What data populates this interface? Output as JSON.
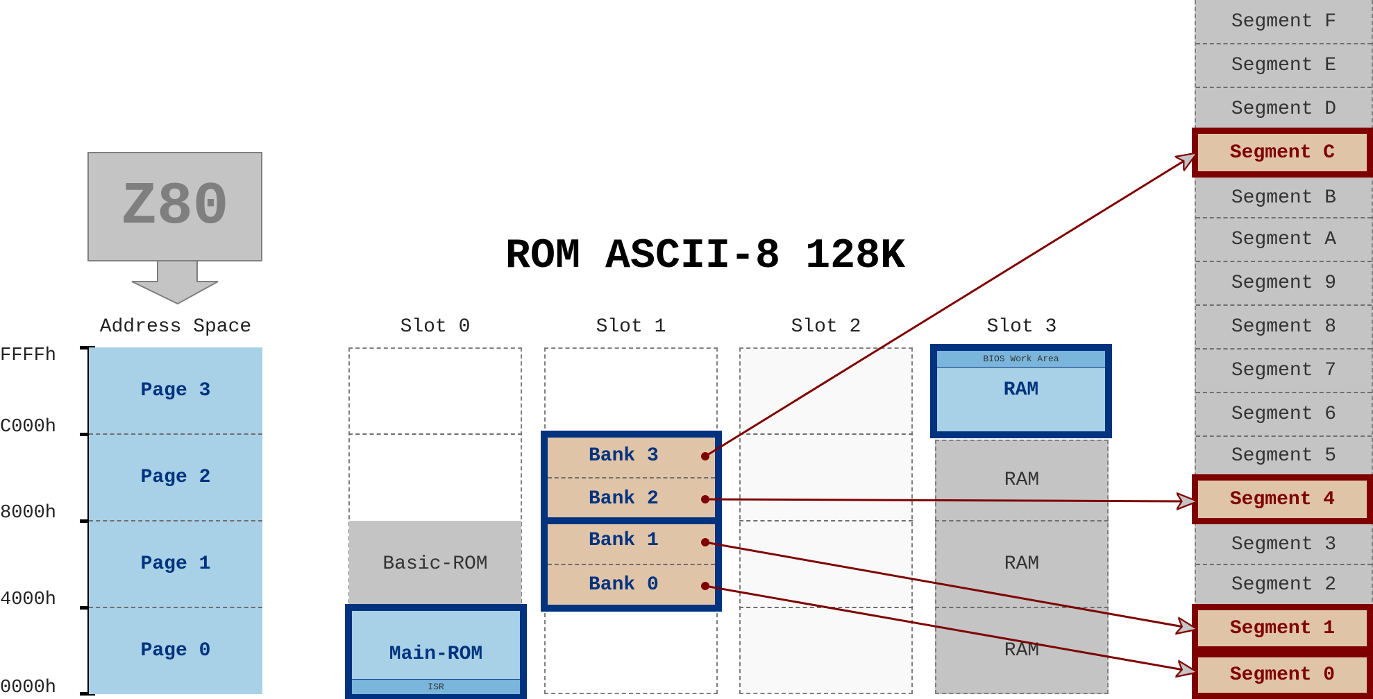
{
  "title": "ROM ASCII-8 128K",
  "cpu": {
    "label": "Z80"
  },
  "address_space": {
    "header": "Address Space",
    "addresses": [
      "FFFFh",
      "C000h",
      "8000h",
      "4000h",
      "0000h"
    ],
    "pages": [
      "Page 3",
      "Page 2",
      "Page 1",
      "Page 0"
    ]
  },
  "slots": {
    "headers": [
      "Slot 0",
      "Slot 1",
      "Slot 2",
      "Slot 3"
    ],
    "slot0": {
      "basic_rom": "Basic-ROM",
      "main_rom": "Main-ROM",
      "isr": "ISR"
    },
    "slot1": {
      "banks": [
        "Bank 3",
        "Bank 2",
        "Bank 1",
        "Bank 0"
      ]
    },
    "slot3": {
      "bios": "BIOS Work Area",
      "ram_labels": [
        "RAM",
        "RAM",
        "RAM",
        "RAM"
      ]
    }
  },
  "segments": [
    "Segment F",
    "Segment E",
    "Segment D",
    "Segment C",
    "Segment B",
    "Segment A",
    "Segment 9",
    "Segment 8",
    "Segment 7",
    "Segment 6",
    "Segment 5",
    "Segment 4",
    "Segment 3",
    "Segment 2",
    "Segment 1",
    "Segment 0"
  ],
  "highlighted_segments": [
    "Segment C",
    "Segment 4",
    "Segment 1",
    "Segment 0"
  ],
  "mapping": [
    {
      "from": "Bank 3",
      "to": "Segment C"
    },
    {
      "from": "Bank 2",
      "to": "Segment 4"
    },
    {
      "from": "Bank 1",
      "to": "Segment 1"
    },
    {
      "from": "Bank 0",
      "to": "Segment 0"
    }
  ],
  "colors": {
    "page": "#a8d0e6",
    "page_text": "#00337f",
    "bank": "#e0c4a8",
    "segment": "#c4c4c4",
    "highlight": "#7f0000"
  }
}
